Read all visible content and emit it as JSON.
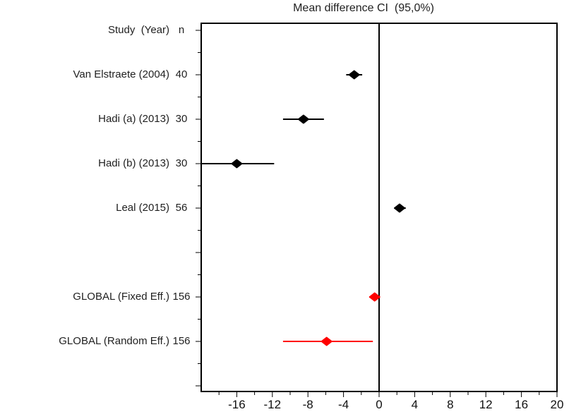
{
  "title": "Mean difference CI  (95,0%)",
  "header": {
    "study": "Study  (Year)",
    "n": "n"
  },
  "colors": {
    "frame": "#000000",
    "zero_line": "#000000",
    "study": "#000000",
    "global": "#ff0000",
    "text": "#1f1f1f"
  },
  "chart_data": {
    "type": "forest",
    "title": "Mean difference CI  (95,0%)",
    "xlabel": "",
    "xlim": [
      -20,
      20
    ],
    "zero_line": 0,
    "tick_values": [
      -16,
      -12,
      -8,
      -4,
      0,
      4,
      8,
      12,
      16,
      20
    ],
    "tick_labels": [
      "-16",
      "-12",
      "-8",
      "-4",
      "0",
      "4",
      "8",
      "12",
      "16",
      "20"
    ],
    "minor_tick_step": 2,
    "grid": false,
    "columns": {
      "study": "Study  (Year)",
      "n": "n"
    },
    "rows": [
      {
        "study": "Van Elstraete (2004)",
        "n": "40",
        "estimate": -2.8,
        "ci_low": -3.7,
        "ci_high": -1.9,
        "group": "study"
      },
      {
        "study": "Hadi (a) (2013)",
        "n": "30",
        "estimate": -8.5,
        "ci_low": -10.8,
        "ci_high": -6.2,
        "group": "study"
      },
      {
        "study": "Hadi (b) (2013)",
        "n": "30",
        "estimate": -16.0,
        "ci_low": -20.0,
        "ci_high": -11.8,
        "group": "study"
      },
      {
        "study": "Leal (2015)",
        "n": "56",
        "estimate": 2.3,
        "ci_low": 1.7,
        "ci_high": 3.0,
        "group": "study"
      },
      {
        "study": "GLOBAL (Fixed Eff.)",
        "n": "156",
        "estimate": -0.5,
        "ci_low": -1.1,
        "ci_high": 0.1,
        "group": "global"
      },
      {
        "study": "GLOBAL (Random Eff.)",
        "n": "156",
        "estimate": -5.9,
        "ci_low": -10.8,
        "ci_high": -0.7,
        "group": "global"
      }
    ]
  }
}
